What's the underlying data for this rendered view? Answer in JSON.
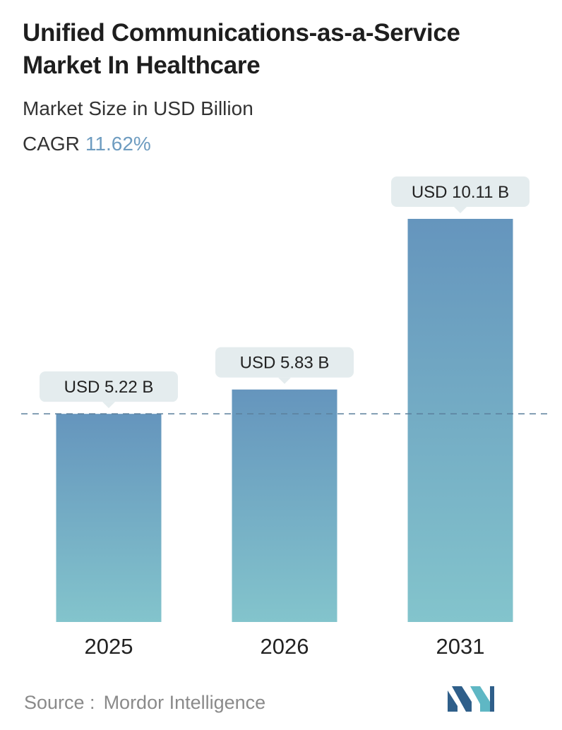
{
  "title": "Unified Communications-as-a-Service Market In Healthcare",
  "subtitle": "Market Size in USD Billion",
  "cagr": {
    "label": "CAGR",
    "value": "11.62%"
  },
  "colors": {
    "bar_top": "#6595bd",
    "bar_bottom": "#83c4cc",
    "label_bg": "#e4ecee",
    "cagr_value": "#6e9cc0",
    "dashed_line": "#5b7f9c",
    "logo_dark": "#2f5f8a",
    "logo_light": "#5fb7c4"
  },
  "chart_data": {
    "type": "bar",
    "categories": [
      "2025",
      "2026",
      "2031"
    ],
    "values": [
      5.22,
      5.83,
      10.11
    ],
    "value_labels": [
      "USD 5.22 B",
      "USD 5.83 B",
      "USD 10.11 B"
    ],
    "title": "Unified Communications-as-a-Service Market In Healthcare",
    "subtitle": "Market Size in USD Billion",
    "ylim": [
      0,
      10.11
    ],
    "grid": false,
    "reference_line": {
      "value": 5.22,
      "style": "dashed"
    }
  },
  "source": {
    "label": "Source :",
    "value": "Mordor Intelligence"
  },
  "logo": {
    "name": "mordor-intelligence-logo"
  }
}
